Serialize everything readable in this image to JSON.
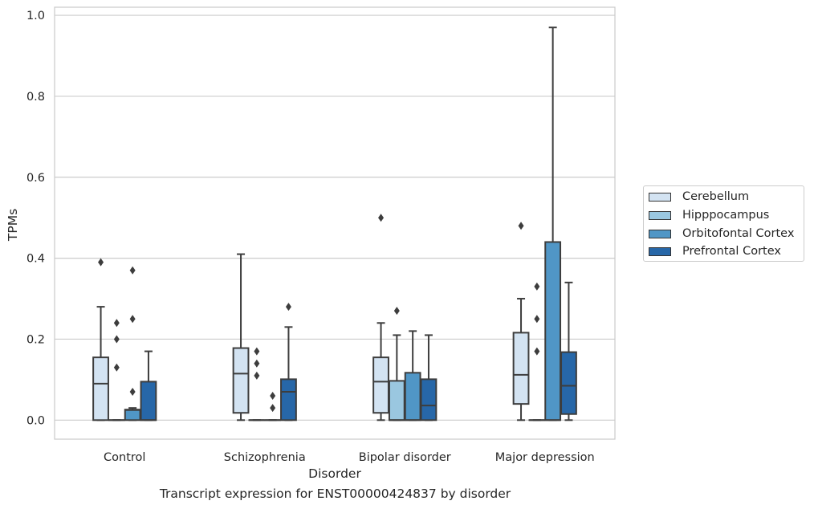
{
  "chart_data": {
    "type": "box",
    "caption": "Transcript expression for ENST00000424837 by disorder",
    "xlabel": "Disorder",
    "ylabel": "TPMs",
    "ylim": [
      -0.047,
      1.02
    ],
    "yticks": [
      "0.0",
      "0.2",
      "0.4",
      "0.6",
      "0.8",
      "1.0"
    ],
    "categories": [
      "Control",
      "Schizophrenia",
      "Bipolar disorder",
      "Major depression"
    ],
    "grid": true,
    "legend_position": "right",
    "series": [
      {
        "name": "Cerebellum",
        "color": "#d3e3f2",
        "boxes": [
          {
            "whislo": 0.0,
            "q1": 0.0,
            "med": 0.09,
            "q3": 0.155,
            "whishi": 0.28,
            "fliers": [
              0.39
            ]
          },
          {
            "whislo": 0.0,
            "q1": 0.018,
            "med": 0.115,
            "q3": 0.178,
            "whishi": 0.41,
            "fliers": []
          },
          {
            "whislo": 0.0,
            "q1": 0.018,
            "med": 0.095,
            "q3": 0.155,
            "whishi": 0.24,
            "fliers": [
              0.5
            ]
          },
          {
            "whislo": 0.0,
            "q1": 0.04,
            "med": 0.112,
            "q3": 0.216,
            "whishi": 0.3,
            "fliers": [
              0.48
            ]
          }
        ]
      },
      {
        "name": "Hipppocampus",
        "color": "#9ac7e0",
        "boxes": [
          {
            "whislo": 0.0,
            "q1": 0.0,
            "med": 0.0,
            "q3": 0.0,
            "whishi": 0.0,
            "fliers": [
              0.13,
              0.2,
              0.24
            ]
          },
          {
            "whislo": 0.0,
            "q1": 0.0,
            "med": 0.0,
            "q3": 0.0,
            "whishi": 0.0,
            "fliers": [
              0.11,
              0.14,
              0.17
            ]
          },
          {
            "whislo": 0.0,
            "q1": 0.0,
            "med": 0.0,
            "q3": 0.097,
            "whishi": 0.21,
            "fliers": [
              0.27
            ]
          },
          {
            "whislo": 0.0,
            "q1": 0.0,
            "med": 0.0,
            "q3": 0.0,
            "whishi": 0.0,
            "fliers": [
              0.17,
              0.25,
              0.33
            ]
          }
        ]
      },
      {
        "name": "Orbitofontal Cortex",
        "color": "#5096c6",
        "boxes": [
          {
            "whislo": 0.0,
            "q1": 0.0,
            "med": 0.025,
            "q3": 0.026,
            "whishi": 0.03,
            "fliers": [
              0.07,
              0.25,
              0.37
            ]
          },
          {
            "whislo": 0.0,
            "q1": 0.0,
            "med": 0.0,
            "q3": 0.0,
            "whishi": 0.0,
            "fliers": [
              0.03,
              0.06
            ]
          },
          {
            "whislo": 0.0,
            "q1": 0.0,
            "med": 0.0,
            "q3": 0.117,
            "whishi": 0.22,
            "fliers": []
          },
          {
            "whislo": 0.0,
            "q1": 0.0,
            "med": 0.0,
            "q3": 0.44,
            "whishi": 0.97,
            "fliers": []
          }
        ]
      },
      {
        "name": "Prefrontal Cortex",
        "color": "#2767a8",
        "boxes": [
          {
            "whislo": 0.0,
            "q1": 0.0,
            "med": 0.0,
            "q3": 0.095,
            "whishi": 0.17,
            "fliers": []
          },
          {
            "whislo": 0.0,
            "q1": 0.0,
            "med": 0.07,
            "q3": 0.101,
            "whishi": 0.23,
            "fliers": [
              0.28
            ]
          },
          {
            "whislo": 0.0,
            "q1": 0.0,
            "med": 0.036,
            "q3": 0.101,
            "whishi": 0.21,
            "fliers": []
          },
          {
            "whislo": 0.0,
            "q1": 0.015,
            "med": 0.085,
            "q3": 0.168,
            "whishi": 0.34,
            "fliers": []
          }
        ]
      }
    ]
  }
}
